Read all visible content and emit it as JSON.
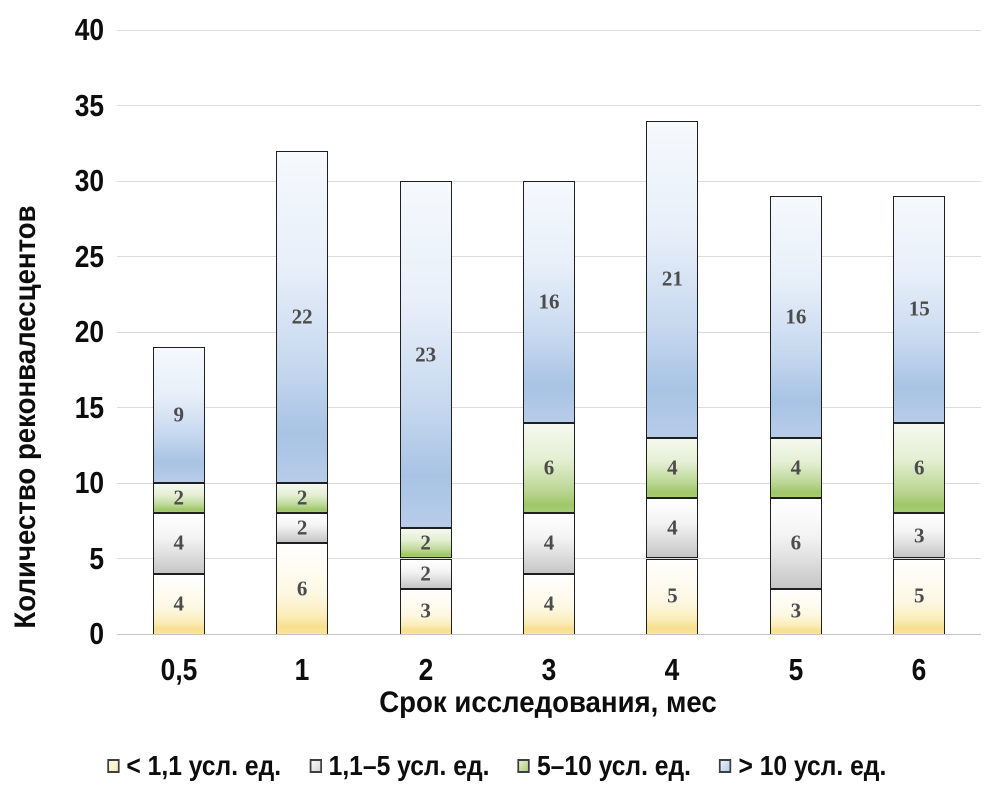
{
  "chart_data": {
    "type": "bar",
    "variant": "stacked-vertical",
    "title": "",
    "xlabel": "Срок исследования, мес",
    "ylabel": "Количество реконвалесцентов",
    "categories": [
      "0,5",
      "1",
      "2",
      "3",
      "4",
      "5",
      "6"
    ],
    "series": [
      {
        "name": "< 1,1 усл. ед.",
        "color": "#f9e49c",
        "values": [
          4,
          6,
          3,
          4,
          5,
          3,
          5
        ]
      },
      {
        "name": "1,1–5 усл. ед.",
        "color": "#c6c6c6",
        "values": [
          4,
          2,
          2,
          4,
          4,
          6,
          3
        ]
      },
      {
        "name": "5–10 усл. ед.",
        "color": "#a8cc74",
        "values": [
          2,
          2,
          2,
          6,
          4,
          4,
          6
        ]
      },
      {
        "name": "> 10 усл. ед.",
        "color": "#b7cce9",
        "values": [
          9,
          22,
          23,
          16,
          21,
          16,
          15
        ]
      }
    ],
    "bar_totals": [
      19,
      32,
      30,
      30,
      34,
      29,
      29
    ],
    "ylim": [
      0,
      40
    ],
    "ytick_step": 5,
    "ytick_labels": [
      "0",
      "5",
      "10",
      "15",
      "20",
      "25",
      "30",
      "35",
      "40"
    ],
    "grid": true,
    "gridline_color": "#dcdcdc",
    "segment_border_color": "#1f1f1f",
    "value_label_color": "#4c4c4c",
    "legend_position": "bottom"
  }
}
